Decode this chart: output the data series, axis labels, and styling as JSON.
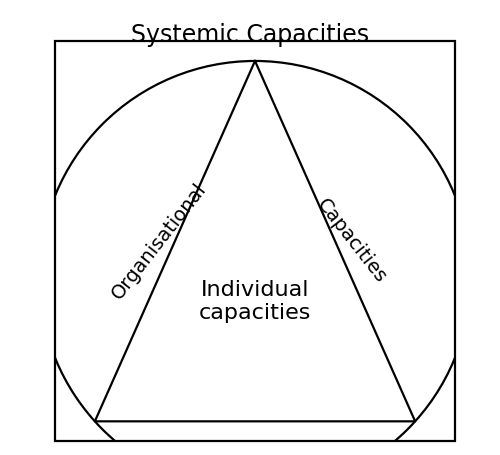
{
  "title": "Systemic Capacities",
  "title_fontsize": 17,
  "line_color": "#000000",
  "line_width": 1.6,
  "background_color": "#ffffff",
  "label_individual": "Individual\ncapacities",
  "label_individual_fontsize": 16,
  "label_organisational": "Organisational",
  "label_organisational_fontsize": 14,
  "label_organisational_rotation": 52,
  "label_capacities": "Capacities",
  "label_capacities_fontsize": 14,
  "label_capacities_rotation": -52,
  "fig_width": 5.0,
  "fig_height": 4.55
}
